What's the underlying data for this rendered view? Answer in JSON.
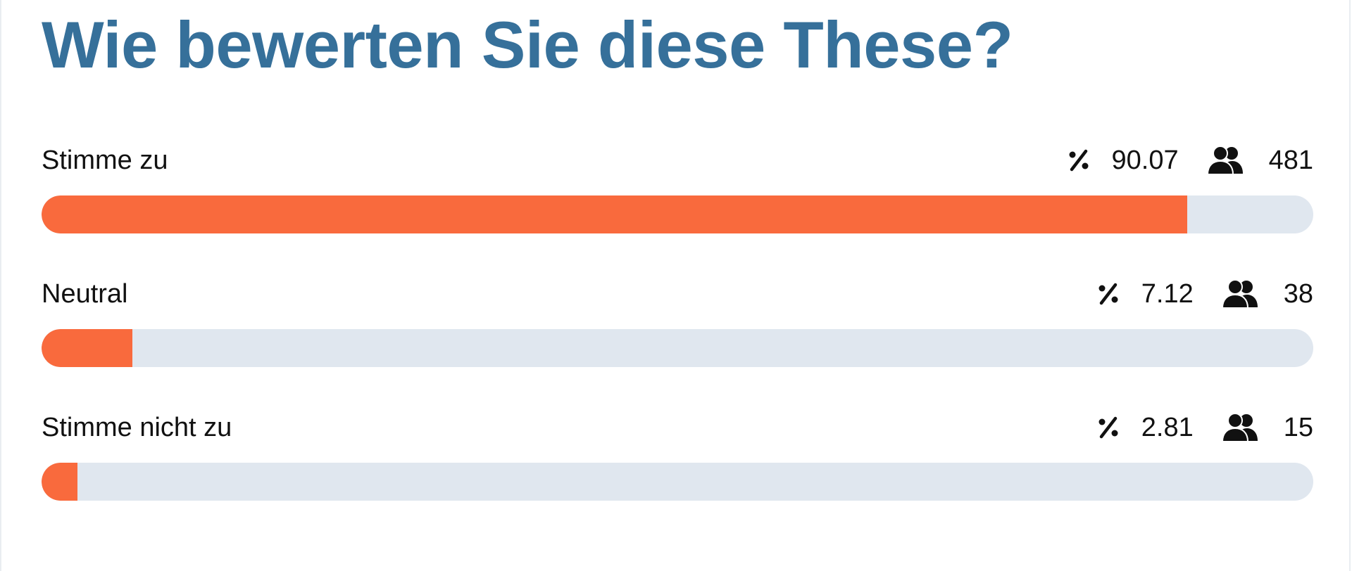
{
  "title": "Wie bewerten Sie diese These?",
  "colors": {
    "title": "#36709a",
    "bar_fill": "#f96a3d",
    "bar_track": "#e0e7ef"
  },
  "icons": {
    "percent": "percent-icon",
    "users": "users-icon"
  },
  "options": [
    {
      "label": "Stimme zu",
      "percent": "90.07",
      "count": "481",
      "fill_fraction": 0.9007
    },
    {
      "label": "Neutral",
      "percent": "7.12",
      "count": "38",
      "fill_fraction": 0.0712
    },
    {
      "label": "Stimme nicht zu",
      "percent": "2.81",
      "count": "15",
      "fill_fraction": 0.0281
    }
  ]
}
